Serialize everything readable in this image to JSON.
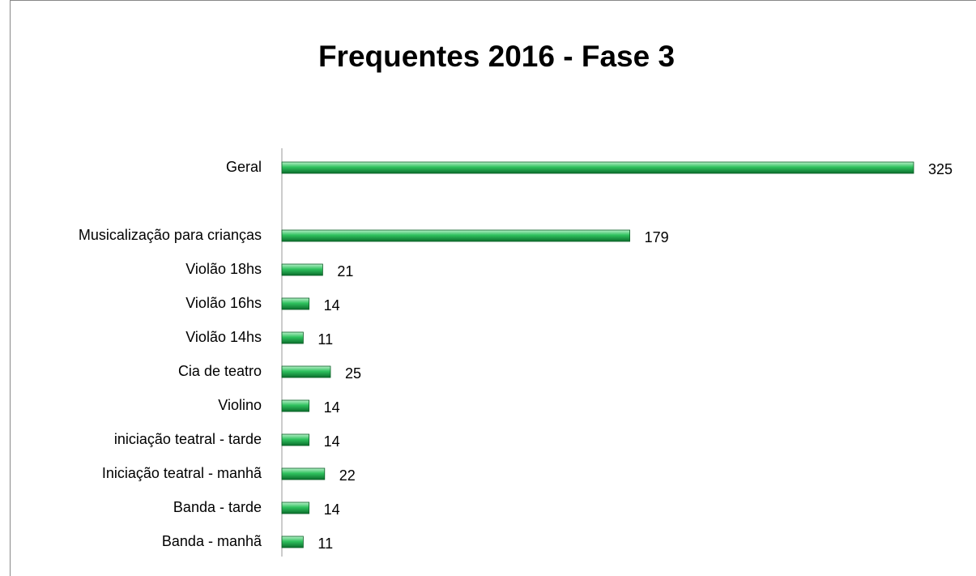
{
  "chart_data": {
    "type": "barh",
    "title": "Frequentes  2016 - Fase 3",
    "categories": [
      "Geral",
      null,
      "Musicalização para crianças",
      "Violão 18hs",
      "Violão 16hs",
      "Violão 14hs",
      "Cia de teatro",
      "Violino",
      "iniciação teatral - tarde",
      "Iniciação teatral - manhã",
      "Banda - tarde",
      "Banda - manhã"
    ],
    "values": [
      325,
      null,
      179,
      21,
      14,
      11,
      25,
      14,
      14,
      22,
      14,
      11
    ],
    "color": "#22b14c"
  }
}
